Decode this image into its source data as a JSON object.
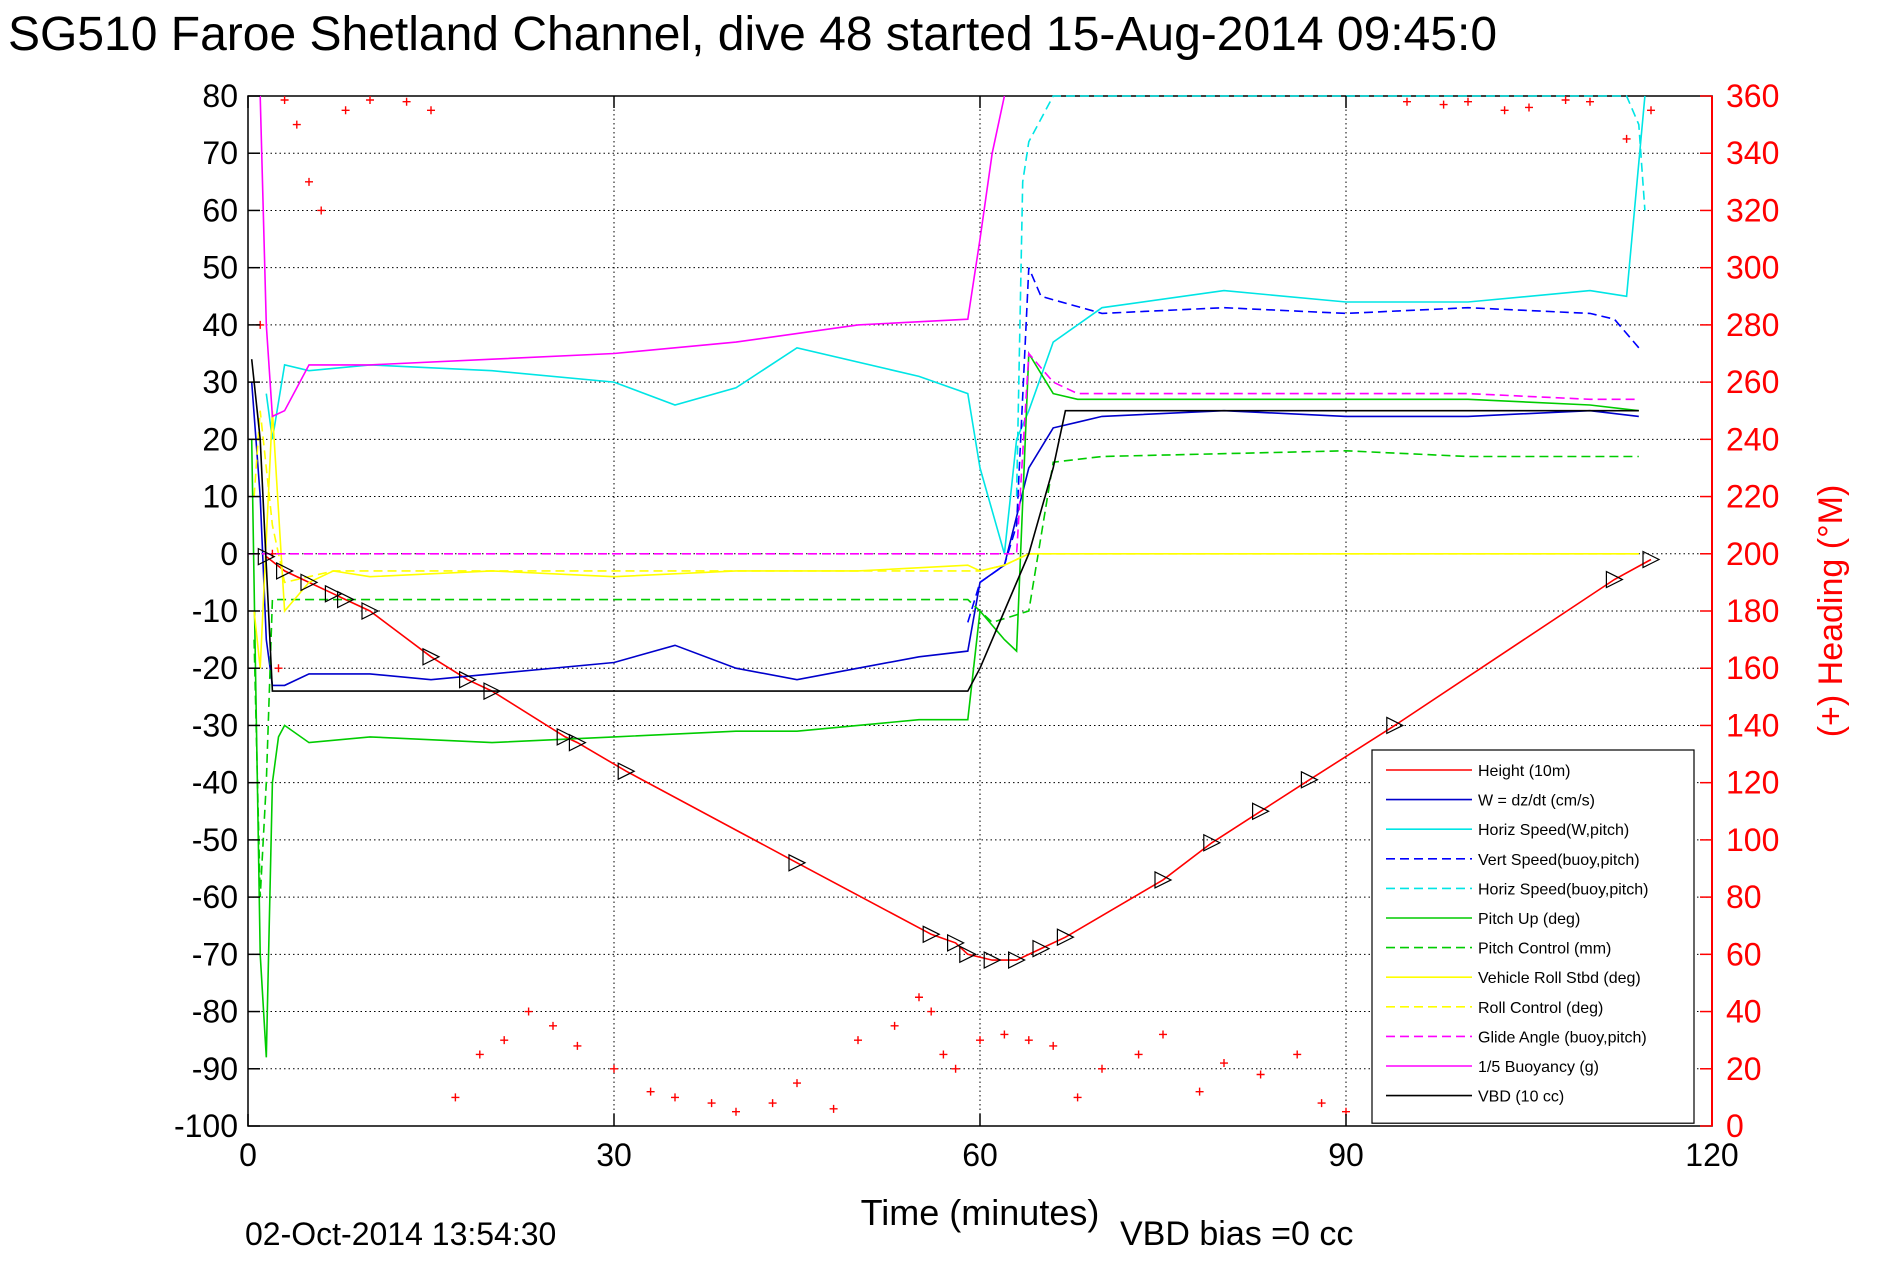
{
  "chart_data": {
    "type": "line",
    "title": "SG510 Faroe Shetland Channel, dive 48 started 15-Aug-2014 09:45:0",
    "xlabel": "Time (minutes)",
    "ylabel": "",
    "y2label": "(+) Heading (°M)",
    "xlim": [
      0,
      120
    ],
    "ylim": [
      -100,
      80
    ],
    "y2lim": [
      0,
      360
    ],
    "x_ticks": [
      "0",
      "30",
      "60",
      "90",
      "120"
    ],
    "y_ticks": [
      "80",
      "70",
      "60",
      "50",
      "40",
      "30",
      "20",
      "10",
      "0",
      "-10",
      "-20",
      "-30",
      "-40",
      "-50",
      "-60",
      "-70",
      "-80",
      "-90",
      "-100"
    ],
    "y2_ticks": [
      "360",
      "340",
      "320",
      "300",
      "280",
      "260",
      "240",
      "220",
      "200",
      "180",
      "160",
      "140",
      "120",
      "100",
      "80",
      "60",
      "40",
      "20",
      "0"
    ],
    "grid": true,
    "legend_position": "bottom-right",
    "series": [
      {
        "name": "Height (10m)",
        "color": "#ff0000",
        "dash": "solid",
        "x": [
          1.5,
          3,
          5,
          7,
          8,
          10,
          15,
          18,
          20,
          26,
          27,
          31,
          45,
          56,
          58,
          59,
          61,
          63,
          65,
          67,
          75,
          79,
          83,
          87,
          94,
          112,
          115
        ],
        "y": [
          -0.5,
          -3,
          -5,
          -7,
          -8,
          -10,
          -18,
          -22,
          -24,
          -32,
          -33,
          -38,
          -54,
          -66.5,
          -68,
          -70,
          -71,
          -71,
          -69,
          -67,
          -57,
          -50.5,
          -45,
          -39.5,
          -30,
          -4.5,
          -1
        ]
      },
      {
        "name": "W = dz/dt (cm/s)",
        "color": "#0000cc",
        "dash": "solid",
        "x": [
          0.3,
          1,
          1.5,
          2,
          3,
          5,
          10,
          15,
          20,
          30,
          35,
          40,
          45,
          50,
          55,
          59,
          60,
          62,
          64,
          66,
          68,
          70,
          80,
          90,
          100,
          110,
          114
        ],
        "y": [
          30,
          10,
          -15,
          -23,
          -23,
          -21,
          -21,
          -22,
          -21,
          -19,
          -16,
          -20,
          -22,
          -20,
          -18,
          -17,
          -5,
          -2,
          15,
          22,
          23,
          24,
          25,
          24,
          24,
          25,
          24
        ]
      },
      {
        "name": "Horiz Speed(W,pitch)",
        "color": "#00e5e5",
        "dash": "solid",
        "x": [
          1.5,
          2,
          3,
          5,
          10,
          20,
          30,
          35,
          40,
          45,
          55,
          59,
          60,
          62,
          63,
          64,
          66,
          70,
          80,
          90,
          100,
          110,
          113,
          114.5
        ],
        "y": [
          28,
          20,
          33,
          32,
          33,
          32,
          30,
          26,
          29,
          36,
          31,
          28,
          15,
          0,
          20,
          25,
          37,
          43,
          46,
          44,
          44,
          46,
          45,
          80
        ]
      },
      {
        "name": "Vert Speed(buoy,pitch)",
        "color": "#0000ff",
        "dash": "dashed",
        "x": [
          59,
          60,
          62,
          63,
          64,
          65,
          70,
          80,
          90,
          100,
          110,
          112,
          114
        ],
        "y": [
          -12,
          -5,
          -2,
          5,
          50,
          45,
          42,
          43,
          42,
          43,
          42,
          41,
          36
        ]
      },
      {
        "name": "Horiz Speed(buoy,pitch)",
        "color": "#00e5e5",
        "dash": "dashed",
        "x": [
          63,
          63.5,
          64,
          66,
          68,
          113,
          114,
          114.5
        ],
        "y": [
          10,
          65,
          72,
          80,
          80,
          80,
          75,
          60
        ]
      },
      {
        "name": "Pitch Up (deg)",
        "color": "#00cc00",
        "dash": "solid",
        "x": [
          0.3,
          1,
          1.5,
          2,
          2.5,
          3,
          5,
          10,
          20,
          30,
          40,
          45,
          50,
          55,
          59,
          60,
          62,
          63,
          64,
          66,
          68,
          80,
          90,
          100,
          110,
          114
        ],
        "y": [
          20,
          -70,
          -88,
          -40,
          -32,
          -30,
          -33,
          -32,
          -33,
          -32,
          -31,
          -31,
          -30,
          -29,
          -29,
          -10,
          -15,
          -17,
          35,
          28,
          27,
          27,
          27,
          27,
          26,
          25
        ]
      },
      {
        "name": "Pitch Control (mm)",
        "color": "#00cc00",
        "dash": "dashed",
        "x": [
          0.5,
          1,
          1.5,
          2,
          3,
          20,
          40,
          59,
          60,
          61,
          64,
          66,
          70,
          90,
          100,
          114
        ],
        "y": [
          -15,
          -60,
          -40,
          -8,
          -8,
          -8,
          -8,
          -8,
          -10,
          -12,
          -10,
          16,
          17,
          18,
          17,
          17
        ]
      },
      {
        "name": "Vehicle Roll Stbd (deg)",
        "color": "#ffff00",
        "dash": "solid",
        "x": [
          0.5,
          1,
          2,
          3,
          5,
          7,
          10,
          20,
          30,
          40,
          50,
          59,
          60,
          62,
          64,
          66,
          70,
          80,
          90,
          100,
          110,
          114
        ],
        "y": [
          -10,
          -20,
          25,
          -10,
          -5,
          -3,
          -4,
          -3,
          -4,
          -3,
          -3,
          -2,
          -3,
          -2,
          0,
          0,
          0,
          0,
          0,
          0,
          0,
          0
        ]
      },
      {
        "name": "Roll Control (deg)",
        "color": "#ffff00",
        "dash": "dashed",
        "x": [
          0.5,
          1,
          2,
          3,
          5,
          7,
          10,
          20,
          30,
          40,
          50,
          59,
          60,
          62,
          64,
          66,
          70,
          80,
          90,
          100,
          110,
          114
        ],
        "y": [
          10,
          25,
          5,
          -5,
          -4,
          -3,
          -3,
          -3,
          -3,
          -3,
          -3,
          -3,
          -3,
          -2,
          0,
          0,
          0,
          0,
          0,
          0,
          0,
          0
        ]
      },
      {
        "name": "Glide Angle (buoy,pitch)",
        "color": "#ff00ff",
        "dash": "dashed",
        "x": [
          0,
          10,
          20,
          30,
          40,
          50,
          60,
          63,
          64,
          66,
          68,
          80,
          90,
          100,
          110,
          114
        ],
        "y": [
          0,
          0,
          0,
          0,
          0,
          0,
          0,
          0,
          35,
          30,
          28,
          28,
          28,
          28,
          27,
          27
        ]
      },
      {
        "name": "1/5 Buoyancy (g)",
        "color": "#ff00ff",
        "dash": "solid",
        "x": [
          1,
          1.5,
          2,
          3,
          5,
          10,
          20,
          30,
          40,
          50,
          59,
          60,
          61,
          62
        ],
        "y": [
          80,
          40,
          24,
          25,
          33,
          33,
          34,
          35,
          37,
          40,
          41,
          55,
          70,
          80
        ]
      },
      {
        "name": "VBD (10 cc)",
        "color": "#000000",
        "dash": "solid",
        "x": [
          0.3,
          1,
          2,
          3,
          10,
          20,
          30,
          40,
          50,
          59,
          60,
          62,
          64,
          66,
          67,
          68,
          80,
          90,
          100,
          110,
          114
        ],
        "y": [
          34,
          20,
          -24,
          -24,
          -24,
          -24,
          -24,
          -24,
          -24,
          -24,
          -20,
          -10,
          0,
          15,
          25,
          25,
          25,
          25,
          25,
          25,
          25
        ]
      }
    ],
    "heading_series": {
      "name": "(+) Heading (°M)",
      "color": "#ff0000",
      "marker": "+",
      "x": [
        1,
        2,
        2.5,
        3,
        4,
        5,
        6,
        8,
        10,
        13,
        15,
        17,
        19,
        21,
        23,
        25,
        27,
        30,
        33,
        35,
        38,
        40,
        43,
        45,
        48,
        50,
        53,
        55,
        56,
        57,
        58,
        60,
        62,
        64,
        66,
        68,
        70,
        73,
        75,
        78,
        80,
        83,
        86,
        88,
        90,
        93,
        95,
        98,
        100,
        103,
        105,
        108,
        110,
        113,
        115
      ],
      "y": [
        280,
        200,
        160,
        360,
        350,
        330,
        320,
        355,
        360,
        358,
        355,
        10,
        25,
        30,
        40,
        35,
        28,
        20,
        12,
        10,
        8,
        5,
        8,
        15,
        6,
        30,
        35,
        45,
        40,
        25,
        20,
        30,
        32,
        30,
        28,
        10,
        20,
        25,
        32,
        12,
        22,
        18,
        25,
        8,
        5,
        10,
        358,
        357,
        358,
        355,
        356,
        360,
        358,
        345,
        355
      ]
    }
  },
  "footer": {
    "datestamp": "02-Oct-2014 13:54:30",
    "vbd_bias": "VBD bias =0 cc"
  }
}
